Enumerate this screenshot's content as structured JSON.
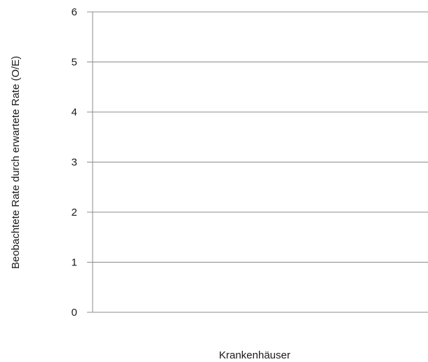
{
  "chart_data": {
    "type": "line",
    "title": "",
    "xlabel": "Krankenhäuser",
    "ylabel": "Beobachtete Rate durch erwartete Rate (O/E)",
    "ylim": [
      0,
      6
    ],
    "y_ticks": [
      0,
      1,
      2,
      3,
      4,
      5,
      6
    ],
    "y_tick_labels": [
      "0",
      "1",
      "2",
      "3",
      "4",
      "5",
      "6"
    ],
    "series": [],
    "grid": true,
    "legend": "none"
  }
}
